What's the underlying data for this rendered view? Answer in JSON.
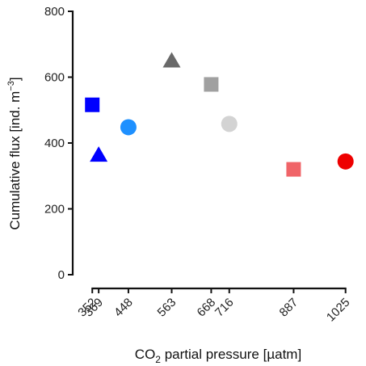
{
  "chart_data": {
    "type": "scatter",
    "xlabel": {
      "prefix": "CO",
      "sub": "2",
      "suffix": " partial pressure [µatm]"
    },
    "ylabel": {
      "main": "Cumulative flux [ind. m",
      "sup": "−3",
      "end": "]"
    },
    "ylim": [
      0,
      800
    ],
    "yticks": [
      0,
      200,
      400,
      600,
      800
    ],
    "xlim": [
      300,
      1060
    ],
    "xticks": [
      352,
      369,
      448,
      563,
      668,
      716,
      887,
      1025
    ],
    "grid": false,
    "legend": "none",
    "points": [
      {
        "x": 352,
        "y": 516,
        "shape": "square",
        "color": "#0000ff"
      },
      {
        "x": 369,
        "y": 362,
        "shape": "triangle",
        "color": "#0000ff"
      },
      {
        "x": 448,
        "y": 448,
        "shape": "circle",
        "color": "#1e90ff"
      },
      {
        "x": 563,
        "y": 648,
        "shape": "triangle",
        "color": "#696969"
      },
      {
        "x": 668,
        "y": 578,
        "shape": "square",
        "color": "#a0a0a0"
      },
      {
        "x": 716,
        "y": 458,
        "shape": "circle",
        "color": "#d3d3d3"
      },
      {
        "x": 887,
        "y": 320,
        "shape": "square",
        "color": "#f06468"
      },
      {
        "x": 1025,
        "y": 344,
        "shape": "circle",
        "color": "#ee0000"
      }
    ]
  }
}
